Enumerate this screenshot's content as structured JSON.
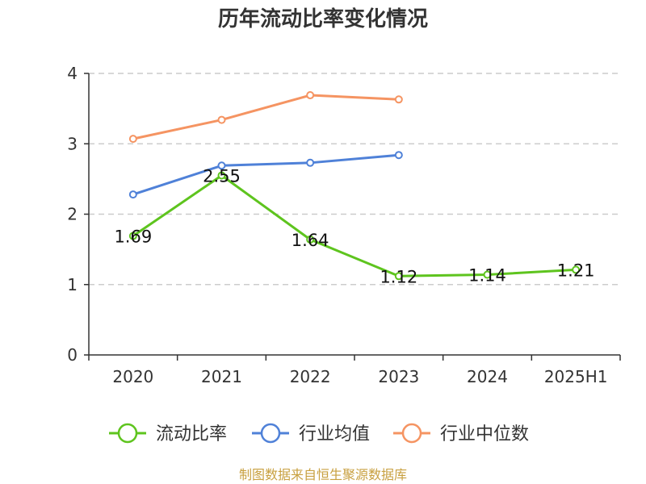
{
  "chart_data": {
    "type": "line",
    "title": "历年流动比率变化情况",
    "categories": [
      "2020",
      "2021",
      "2022",
      "2023",
      "2024",
      "2025H1"
    ],
    "ylim": [
      0,
      4
    ],
    "yticks": [
      0,
      1,
      2,
      3,
      4
    ],
    "grid": true,
    "legend_position": "bottom",
    "series": [
      {
        "name": "流动比率",
        "color": "#5ec41e",
        "values": [
          1.69,
          2.55,
          1.64,
          1.12,
          1.14,
          1.21
        ],
        "labels": [
          "1.69",
          "2.55",
          "1.64",
          "1.12",
          "1.14",
          "1.21"
        ]
      },
      {
        "name": "行业均值",
        "color": "#4f81d8",
        "values": [
          2.28,
          2.69,
          2.73,
          2.84,
          null,
          null
        ]
      },
      {
        "name": "行业中位数",
        "color": "#f59462",
        "values": [
          3.07,
          3.34,
          3.69,
          3.63,
          null,
          null
        ]
      }
    ]
  },
  "source_text": "制图数据来自恒生聚源数据库"
}
